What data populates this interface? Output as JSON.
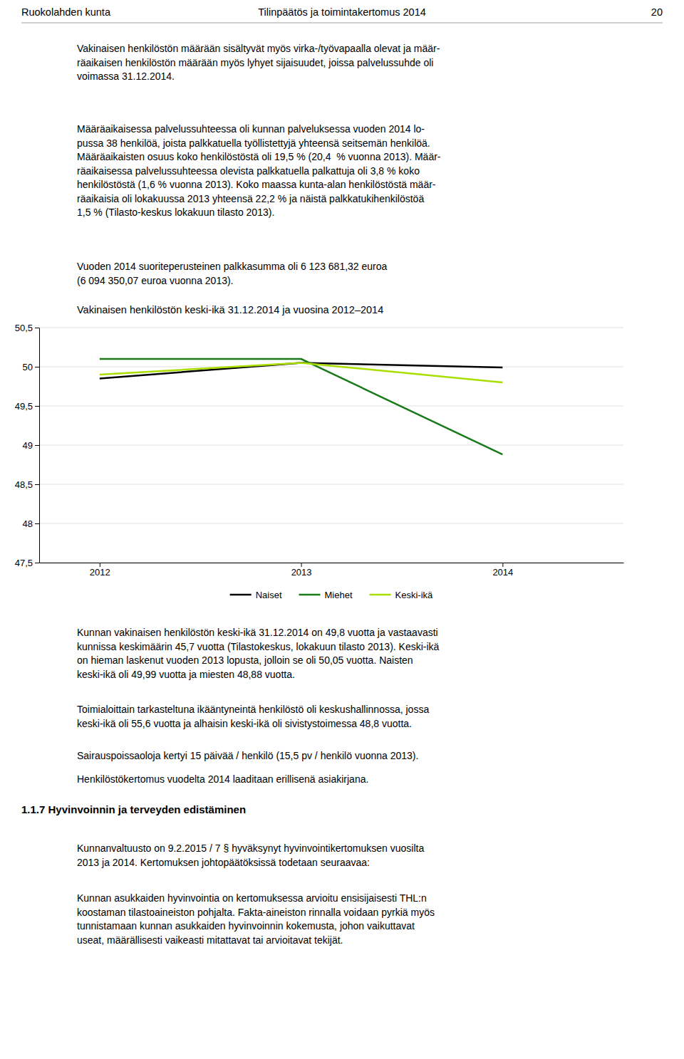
{
  "chart_data": {
    "type": "line",
    "title": "Vakinaisen henkilöstön keski-ikä 31.12.2014 ja vuosina 2012–2014",
    "x": [
      2012,
      2013,
      2014
    ],
    "xlim": [
      2011.7,
      2014.6
    ],
    "xticks": [
      2012,
      2013,
      2014
    ],
    "ylim": [
      47.5,
      50.5
    ],
    "yticks": [
      {
        "value": 47.5,
        "label": "47,5"
      },
      48,
      {
        "value": 48.5,
        "label": "48,5"
      },
      49,
      {
        "value": 49.5,
        "label": "49,5"
      },
      50,
      {
        "value": 50.5,
        "label": "50,5"
      }
    ],
    "grid": true,
    "legend": "bottom",
    "series": [
      {
        "name": "Naiset",
        "color": "#000000",
        "values": [
          49.85,
          50.05,
          49.99
        ]
      },
      {
        "name": "Miehet",
        "color": "#1a7a1a",
        "values": [
          50.1,
          50.1,
          48.88
        ]
      },
      {
        "name": "Keski-ikä",
        "color": "#aadd00",
        "values": [
          49.9,
          50.05,
          49.8
        ]
      }
    ]
  },
  "page_text": {
    "header_left": "Ruokolahden kunta",
    "header_center": "Tilinpäätös ja toimintakertomus 2014",
    "page_number": "20",
    "para1": [
      "Vakinaisen henkilöstön määrään sisältyvät myös virka-/työvapaalla olevat ja määr-",
      "räaikaisen henkilöstön määrään myös lyhyet sijaisuudet, joissa palvelussuhde oli",
      "voimassa 31.12.2014."
    ],
    "para2": [
      "Määräaikaisessa palvelussuhteessa oli kunnan palveluksessa vuoden 2014 lo-",
      "pussa 38 henkilöä, joista palkkatuella työllistettyjä yhteensä seitsemän henkilöä.",
      "Määräaikaisten osuus koko henkilöstöstä oli 19,5 % (20,4  % vuonna 2013). Määr-",
      "räaikaisessa palvelussuhteessa olevista palkkatuella palkattuja oli 3,8 % koko",
      "henkilöstöstä (1,6 % vuonna 2013). Koko maassa kunta-alan henkilöstöstä määr-",
      "räaikaisia oli lokakuussa 2013 yhteensä 22,2 % ja näistä palkkatukihenkilöstöä",
      "1,5 % (Tilasto-keskus lokakuun tilasto 2013)."
    ],
    "para3": [
      "Vuoden 2014 suoriteperusteinen palkkasumma oli 6 123 681,32 euroa",
      "(6 094 350,07 euroa vuonna 2013)."
    ],
    "para4": [
      "Kunnan vakinaisen henkilöstön keski-ikä 31.12.2014 on 49,8 vuotta ja vastaavasti",
      "kunnissa keskimäärin 45,7 vuotta (Tilastokeskus, lokakuun tilasto 2013). Keski-ikä",
      "on hieman laskenut vuoden 2013 lopusta, jolloin se oli 50,05 vuotta. Naisten",
      "keski-ikä oli 49,99 vuotta ja miesten 48,88 vuotta."
    ],
    "para5": [
      "Toimialoittain tarkasteltuna ikääntyneintä henkilöstö oli keskushallinnossa, jossa",
      "keski-ikä oli 55,6 vuotta ja alhaisin keski-ikä oli sivistystoimessa 48,8 vuotta."
    ],
    "para6": [
      "Sairauspoissaoloja kertyi 15 päivää / henkilö (15,5 pv / henkilö vuonna 2013)."
    ],
    "para7": [
      "Henkilöstökertomus vuodelta 2014 laaditaan erillisenä asiakirjana."
    ],
    "section_header": "1.1.7 Hyvinvoinnin ja terveyden edistäminen",
    "para8": [
      "Kunnanvaltuusto on 9.2.2015 / 7 § hyväksynyt hyvinvointikertomuksen vuosilta",
      "2013 ja 2014. Kertomuksen johtopäätöksissä todetaan seuraavaa:"
    ],
    "para9": [
      "Kunnan asukkaiden hyvinvointia on kertomuksessa arvioitu ensisijaisesti THL:n",
      "koostaman tilastoaineiston pohjalta. Fakta-aineiston rinnalla voidaan pyrkiä myös",
      "tunnistamaan kunnan asukkaiden hyvinvoinnin kokemusta, johon vaikuttavat",
      "useat, määrällisesti vaikeasti mitattavat tai arvioitavat tekijät."
    ]
  }
}
